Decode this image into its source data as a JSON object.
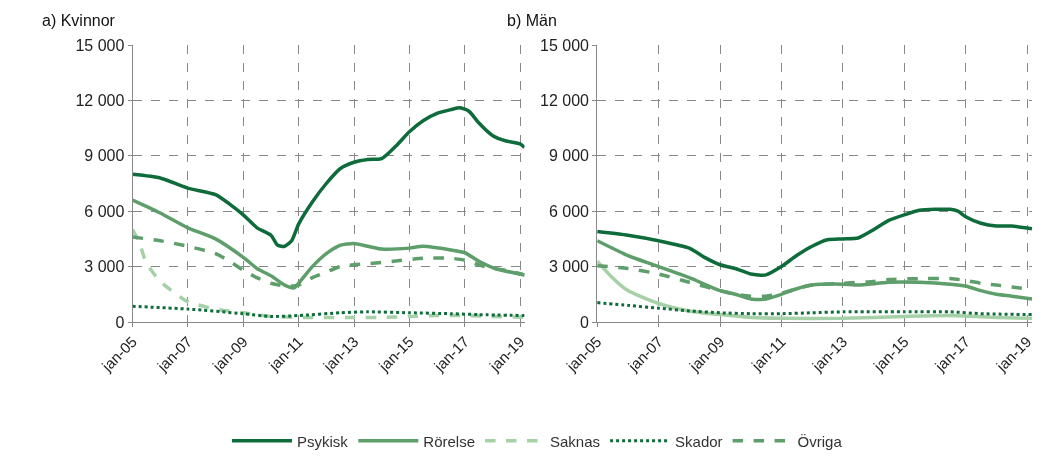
{
  "chart_data": [
    {
      "type": "line",
      "title": "a) Kvinnor",
      "legend": "bottom",
      "grid": true,
      "xlim": [
        "2005-01",
        "2019-03"
      ],
      "ylim": [
        0,
        15000
      ],
      "xticks": [
        {
          "value": "2005-01",
          "label": "jan-05"
        },
        {
          "value": "2007-01",
          "label": "jan-07"
        },
        {
          "value": "2009-01",
          "label": "jan-09"
        },
        {
          "value": "2011-01",
          "label": "jan-11"
        },
        {
          "value": "2013-01",
          "label": "jan-13"
        },
        {
          "value": "2015-01",
          "label": "jan-15"
        },
        {
          "value": "2017-01",
          "label": "jan-17"
        },
        {
          "value": "2019-01",
          "label": "jan-19"
        }
      ],
      "yticks": [
        {
          "value": 0,
          "label": "0"
        },
        {
          "value": 3000,
          "label": "3 000"
        },
        {
          "value": 6000,
          "label": "6 000"
        },
        {
          "value": 9000,
          "label": "9 000"
        },
        {
          "value": 12000,
          "label": "12 000"
        },
        {
          "value": 15000,
          "label": "15 000"
        }
      ],
      "series": [
        {
          "name": "Psykisk",
          "color": "#0e6b3a",
          "line_style": "solid",
          "x": [
            "2005-01",
            "2006-01",
            "2007-01",
            "2008-01",
            "2008-07",
            "2009-01",
            "2009-07",
            "2010-01",
            "2010-04",
            "2010-07",
            "2010-10",
            "2011-01",
            "2011-07",
            "2012-01",
            "2012-07",
            "2013-01",
            "2013-07",
            "2014-01",
            "2014-07",
            "2015-01",
            "2015-07",
            "2016-01",
            "2016-07",
            "2016-11",
            "2017-03",
            "2017-07",
            "2018-01",
            "2018-07",
            "2019-01",
            "2019-03"
          ],
          "values": [
            8000,
            7800,
            7250,
            6900,
            6400,
            5800,
            5100,
            4700,
            4150,
            4100,
            4400,
            5300,
            6500,
            7500,
            8300,
            8650,
            8800,
            8850,
            9500,
            10300,
            10900,
            11300,
            11500,
            11600,
            11400,
            10800,
            10100,
            9800,
            9650,
            9450
          ]
        },
        {
          "name": "Rörelse",
          "color": "#5e9e6a",
          "line_style": "solid",
          "x": [
            "2005-01",
            "2006-01",
            "2007-01",
            "2008-01",
            "2009-01",
            "2009-07",
            "2010-01",
            "2010-07",
            "2010-11",
            "2011-01",
            "2011-07",
            "2012-01",
            "2012-07",
            "2013-01",
            "2013-07",
            "2014-01",
            "2015-01",
            "2015-07",
            "2016-07",
            "2017-01",
            "2017-07",
            "2018-01",
            "2018-07",
            "2019-03"
          ],
          "values": [
            6600,
            5900,
            5100,
            4500,
            3500,
            2900,
            2500,
            2000,
            1850,
            2100,
            3000,
            3700,
            4150,
            4250,
            4100,
            3950,
            4000,
            4100,
            3900,
            3750,
            3300,
            2950,
            2750,
            2550
          ]
        },
        {
          "name": "Saknas",
          "color": "#a6d1a8",
          "line_style": "dashed",
          "x": [
            "2005-01",
            "2005-04",
            "2005-07",
            "2006-01",
            "2006-07",
            "2007-01",
            "2008-01",
            "2009-01",
            "2010-01",
            "2011-01",
            "2012-01",
            "2013-01",
            "2014-01",
            "2015-01",
            "2016-01",
            "2017-01",
            "2018-01",
            "2019-03"
          ],
          "values": [
            5000,
            4300,
            3200,
            2200,
            1600,
            1100,
            700,
            500,
            300,
            250,
            250,
            250,
            250,
            300,
            350,
            350,
            300,
            250
          ]
        },
        {
          "name": "Skador",
          "color": "#0e6b3a",
          "line_style": "dotted",
          "x": [
            "2005-01",
            "2007-01",
            "2009-01",
            "2010-01",
            "2011-01",
            "2012-07",
            "2013-07",
            "2015-01",
            "2016-07",
            "2017-07",
            "2019-03"
          ],
          "values": [
            850,
            700,
            450,
            300,
            350,
            500,
            550,
            500,
            450,
            400,
            350
          ]
        },
        {
          "name": "Övriga",
          "color": "#5e9e6a",
          "line_style": "dashed",
          "x": [
            "2005-01",
            "2006-01",
            "2007-01",
            "2008-01",
            "2008-07",
            "2009-01",
            "2009-07",
            "2010-01",
            "2010-07",
            "2011-01",
            "2011-07",
            "2012-01",
            "2012-07",
            "2013-01",
            "2013-07",
            "2014-07",
            "2015-07",
            "2016-07",
            "2017-01",
            "2017-07",
            "2018-01",
            "2018-07",
            "2019-03"
          ],
          "values": [
            4600,
            4400,
            4100,
            3700,
            3300,
            2800,
            2400,
            2100,
            1950,
            2000,
            2400,
            2700,
            3000,
            3100,
            3150,
            3300,
            3450,
            3450,
            3350,
            3100,
            2900,
            2800,
            2550
          ]
        }
      ]
    },
    {
      "type": "line",
      "title": "b) Män",
      "grid": true,
      "xlim": [
        "2005-01",
        "2019-03"
      ],
      "ylim": [
        0,
        15000
      ],
      "xticks": [
        {
          "value": "2005-01",
          "label": "jan-05"
        },
        {
          "value": "2007-01",
          "label": "jan-07"
        },
        {
          "value": "2009-01",
          "label": "jan-09"
        },
        {
          "value": "2011-01",
          "label": "jan-11"
        },
        {
          "value": "2013-01",
          "label": "jan-13"
        },
        {
          "value": "2015-01",
          "label": "jan-15"
        },
        {
          "value": "2017-01",
          "label": "jan-17"
        },
        {
          "value": "2019-01",
          "label": "jan-19"
        }
      ],
      "yticks": [
        {
          "value": 0,
          "label": "0"
        },
        {
          "value": 3000,
          "label": "3 000"
        },
        {
          "value": 6000,
          "label": "6 000"
        },
        {
          "value": 9000,
          "label": "9 000"
        },
        {
          "value": 12000,
          "label": "12 000"
        },
        {
          "value": 15000,
          "label": "15 000"
        }
      ],
      "series": [
        {
          "color": "#0e6b3a",
          "line_style": "solid",
          "x": [
            "2005-01",
            "2006-01",
            "2007-01",
            "2008-01",
            "2008-07",
            "2009-01",
            "2009-07",
            "2010-01",
            "2010-07",
            "2011-01",
            "2011-07",
            "2012-01",
            "2012-07",
            "2013-01",
            "2013-07",
            "2014-01",
            "2014-07",
            "2015-01",
            "2015-07",
            "2016-07",
            "2016-10",
            "2017-01",
            "2017-07",
            "2018-01",
            "2018-07",
            "2019-03"
          ],
          "values": [
            4900,
            4700,
            4400,
            4000,
            3500,
            3100,
            2900,
            2600,
            2550,
            3000,
            3600,
            4100,
            4450,
            4500,
            4550,
            5000,
            5500,
            5800,
            6050,
            6100,
            6000,
            5700,
            5350,
            5200,
            5200,
            5050
          ]
        },
        {
          "color": "#5e9e6a",
          "line_style": "solid",
          "x": [
            "2005-01",
            "2006-01",
            "2007-01",
            "2008-01",
            "2009-01",
            "2009-07",
            "2010-01",
            "2010-07",
            "2011-01",
            "2011-07",
            "2012-01",
            "2013-01",
            "2013-07",
            "2014-07",
            "2015-07",
            "2016-07",
            "2017-01",
            "2017-07",
            "2018-01",
            "2018-07",
            "2019-03"
          ],
          "values": [
            4400,
            3600,
            3000,
            2400,
            1700,
            1500,
            1250,
            1250,
            1500,
            1800,
            2000,
            2050,
            2000,
            2150,
            2150,
            2050,
            1950,
            1700,
            1500,
            1400,
            1250
          ]
        },
        {
          "color": "#a6d1a8",
          "line_style": "solid",
          "x": [
            "2005-01",
            "2005-07",
            "2006-01",
            "2007-01",
            "2008-01",
            "2009-01",
            "2010-01",
            "2011-01",
            "2013-01",
            "2015-01",
            "2016-07",
            "2018-01",
            "2019-03"
          ],
          "values": [
            3300,
            2400,
            1700,
            1000,
            600,
            400,
            250,
            200,
            200,
            300,
            350,
            250,
            200
          ]
        },
        {
          "color": "#0e6b3a",
          "line_style": "dotted",
          "x": [
            "2005-01",
            "2006-01",
            "2007-01",
            "2008-01",
            "2009-01",
            "2010-01",
            "2011-01",
            "2012-01",
            "2013-01",
            "2015-01",
            "2016-07",
            "2017-07",
            "2019-03"
          ],
          "values": [
            1050,
            900,
            750,
            600,
            500,
            450,
            450,
            500,
            550,
            550,
            550,
            450,
            400
          ]
        },
        {
          "color": "#5e9e6a",
          "line_style": "dashed",
          "x": [
            "2005-01",
            "2006-01",
            "2007-01",
            "2008-01",
            "2009-01",
            "2009-07",
            "2010-01",
            "2010-07",
            "2011-01",
            "2011-07",
            "2012-01",
            "2013-01",
            "2014-01",
            "2014-07",
            "2015-07",
            "2016-07",
            "2017-01",
            "2017-07",
            "2018-01",
            "2018-07",
            "2019-03"
          ],
          "values": [
            3050,
            2900,
            2600,
            2150,
            1700,
            1500,
            1400,
            1400,
            1550,
            1800,
            2000,
            2100,
            2200,
            2300,
            2350,
            2350,
            2250,
            2100,
            2000,
            1900,
            1750
          ]
        }
      ]
    }
  ]
}
